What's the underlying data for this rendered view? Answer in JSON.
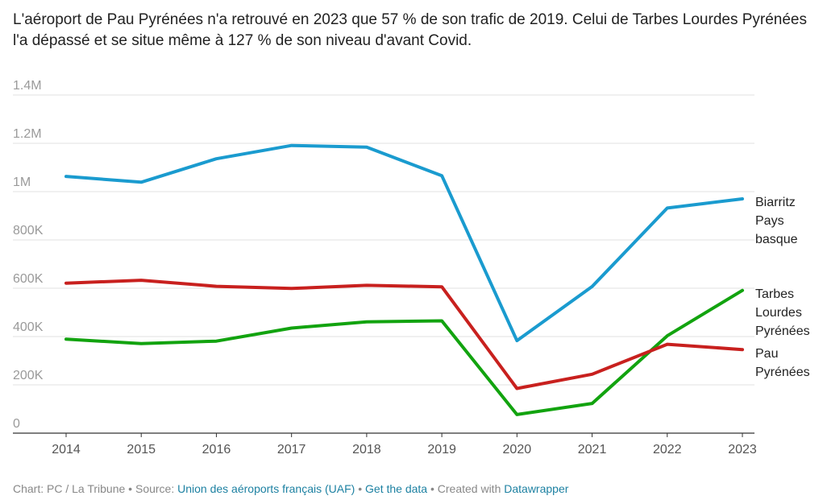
{
  "title": "L'aéroport de Pau Pyrénées n'a retrouvé en 2023 que 57 % de son trafic de 2019. Celui de Tarbes Lourdes Pyrénées l'a dépassé et se situe même à 127 % de son niveau d'avant Covid.",
  "footer": {
    "chart_by": "Chart: PC / La Tribune",
    "sep1": " • Source: ",
    "source_link": "Union des aéroports français (UAF)",
    "sep2": " • ",
    "data_link": "Get the data",
    "sep3": " • Created with ",
    "tool_link": "Datawrapper"
  },
  "chart_data": {
    "type": "line",
    "title": "",
    "xlabel": "",
    "ylabel": "",
    "ylim": [
      0,
      1400000
    ],
    "y_ticks": [
      0,
      200000,
      400000,
      600000,
      800000,
      1000000,
      1200000,
      1400000
    ],
    "y_tick_labels": [
      "0",
      "200K",
      "400K",
      "600K",
      "800K",
      "1M",
      "1.2M",
      "1.4M"
    ],
    "x": [
      2014,
      2015,
      2016,
      2017,
      2018,
      2019,
      2020,
      2021,
      2022,
      2023
    ],
    "x_tick_labels": [
      "2014",
      "2015",
      "2016",
      "2017",
      "2018",
      "2019",
      "2020",
      "2021",
      "2022",
      "2023"
    ],
    "grid": true,
    "legend": "direct labels at line ends, right",
    "series": [
      {
        "name": "Biarritz Pays basque",
        "label_lines": [
          "Biarritz",
          "Pays",
          "basque"
        ],
        "color": "#1a9bcf",
        "values": [
          1063000,
          1039000,
          1136000,
          1191000,
          1184000,
          1066000,
          383000,
          607000,
          932000,
          970000
        ]
      },
      {
        "name": "Tarbes Lourdes Pyrénées",
        "label_lines": [
          "Tarbes",
          "Lourdes",
          "Pyrénées"
        ],
        "color": "#12a30f",
        "values": [
          389000,
          371000,
          381000,
          435000,
          461000,
          465000,
          77000,
          123000,
          403000,
          591000
        ]
      },
      {
        "name": "Pau Pyrénées",
        "label_lines": [
          "Pau",
          "Pyrénées"
        ],
        "color": "#c8201e",
        "values": [
          621000,
          633000,
          608000,
          599000,
          612000,
          606000,
          185000,
          244000,
          368000,
          346000
        ]
      }
    ]
  }
}
